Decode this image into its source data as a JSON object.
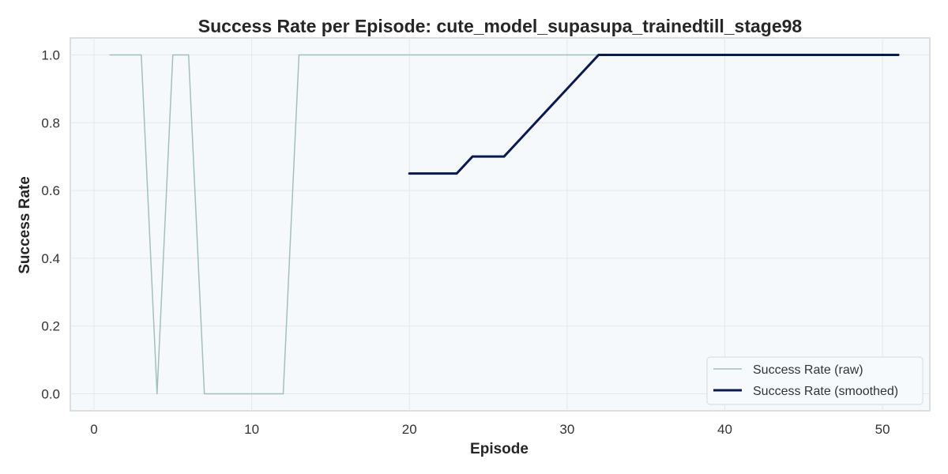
{
  "chart_data": {
    "type": "line",
    "title": "Success Rate per Episode: cute_model_supasupa_trainedtill_stage98",
    "xlabel": "Episode",
    "ylabel": "Success Rate",
    "xlim": [
      -1.5,
      53
    ],
    "ylim": [
      -0.05,
      1.05
    ],
    "x_ticks": [
      0,
      10,
      20,
      30,
      40,
      50
    ],
    "x_tick_labels": [
      "0",
      "10",
      "20",
      "30",
      "40",
      "50"
    ],
    "y_ticks": [
      0,
      0.2,
      0.4,
      0.6,
      0.8,
      1.0
    ],
    "y_tick_labels": [
      "0.0",
      "0.2",
      "0.4",
      "0.6",
      "0.8",
      "1.0"
    ],
    "grid": true,
    "legend_position": "lower-right",
    "series": [
      {
        "name": "Success Rate (raw)",
        "color": "#a3c0b8",
        "x": [
          1,
          2,
          3,
          4,
          5,
          6,
          7,
          8,
          9,
          10,
          11,
          12,
          13,
          14,
          15,
          16,
          17,
          18,
          19,
          20,
          21,
          22,
          23,
          24,
          25,
          26,
          27,
          28,
          29,
          30,
          31,
          32,
          33,
          34,
          35,
          36,
          37,
          38,
          39,
          40,
          41,
          42,
          43,
          44,
          45,
          46,
          47,
          48,
          49,
          50,
          51
        ],
        "y": [
          1,
          1,
          1,
          0,
          1,
          1,
          0,
          0,
          0,
          0,
          0,
          0,
          1,
          1,
          1,
          1,
          1,
          1,
          1,
          1,
          1,
          1,
          1,
          1,
          1,
          1,
          1,
          1,
          1,
          1,
          1,
          1,
          1,
          1,
          1,
          1,
          1,
          1,
          1,
          1,
          1,
          1,
          1,
          1,
          1,
          1,
          1,
          1,
          1,
          1,
          1
        ]
      },
      {
        "name": "Success Rate (smoothed)",
        "color": "#0a1a4f",
        "x": [
          20,
          21,
          22,
          23,
          24,
          25,
          26,
          27,
          28,
          29,
          30,
          31,
          32,
          33,
          34,
          35,
          36,
          37,
          38,
          39,
          40,
          41,
          42,
          43,
          44,
          45,
          46,
          47,
          48,
          49,
          50,
          51
        ],
        "y": [
          0.65,
          0.65,
          0.65,
          0.65,
          0.7,
          0.7,
          0.7,
          0.75,
          0.8,
          0.85,
          0.9,
          0.95,
          1.0,
          1.0,
          1.0,
          1.0,
          1.0,
          1.0,
          1.0,
          1.0,
          1.0,
          1.0,
          1.0,
          1.0,
          1.0,
          1.0,
          1.0,
          1.0,
          1.0,
          1.0,
          1.0,
          1.0
        ]
      }
    ]
  }
}
